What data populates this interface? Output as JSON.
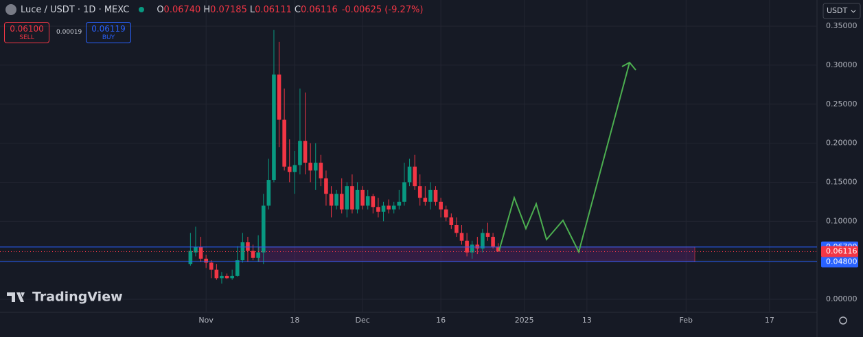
{
  "chart_data": {
    "type": "candlestick",
    "x": [
      -3,
      -2,
      -1,
      0,
      1,
      2,
      3,
      4,
      5,
      6,
      7,
      8,
      9,
      10,
      11,
      12,
      13,
      14,
      15,
      16,
      17,
      18,
      19,
      20,
      21,
      22,
      23,
      24,
      25,
      26,
      27,
      28,
      29,
      30,
      31,
      32,
      33,
      34,
      35,
      36,
      37,
      38,
      39,
      40,
      41,
      42,
      43,
      44,
      45,
      46,
      47,
      48,
      49,
      50,
      51,
      52,
      53,
      54,
      55,
      56
    ],
    "open": [
      0.045,
      0.06,
      0.067,
      0.052,
      0.047,
      0.038,
      0.027,
      0.03,
      0.027,
      0.03,
      0.05,
      0.073,
      0.062,
      0.053,
      0.06,
      0.12,
      0.153,
      0.288,
      0.23,
      0.17,
      0.163,
      0.172,
      0.203,
      0.175,
      0.165,
      0.175,
      0.155,
      0.135,
      0.12,
      0.135,
      0.115,
      0.145,
      0.115,
      0.14,
      0.12,
      0.132,
      0.118,
      0.112,
      0.12,
      0.115,
      0.12,
      0.125,
      0.15,
      0.17,
      0.145,
      0.13,
      0.125,
      0.14,
      0.125,
      0.115,
      0.105,
      0.095,
      0.085,
      0.075,
      0.06,
      0.07,
      0.065,
      0.085,
      0.08,
      0.0674
    ],
    "high": [
      0.085,
      0.093,
      0.08,
      0.057,
      0.05,
      0.045,
      0.035,
      0.033,
      0.038,
      0.068,
      0.085,
      0.08,
      0.07,
      0.082,
      0.135,
      0.18,
      0.345,
      0.33,
      0.27,
      0.205,
      0.19,
      0.27,
      0.265,
      0.2,
      0.2,
      0.185,
      0.165,
      0.145,
      0.14,
      0.155,
      0.15,
      0.16,
      0.15,
      0.145,
      0.14,
      0.135,
      0.13,
      0.125,
      0.128,
      0.125,
      0.14,
      0.175,
      0.18,
      0.185,
      0.16,
      0.145,
      0.15,
      0.145,
      0.13,
      0.12,
      0.11,
      0.105,
      0.095,
      0.085,
      0.075,
      0.08,
      0.09,
      0.098,
      0.085,
      0.07185
    ],
    "low": [
      0.043,
      0.055,
      0.048,
      0.04,
      0.027,
      0.025,
      0.02,
      0.026,
      0.025,
      0.029,
      0.047,
      0.048,
      0.05,
      0.048,
      0.045,
      0.115,
      0.15,
      0.195,
      0.165,
      0.15,
      0.135,
      0.16,
      0.16,
      0.15,
      0.14,
      0.145,
      0.12,
      0.105,
      0.115,
      0.11,
      0.105,
      0.11,
      0.11,
      0.115,
      0.115,
      0.11,
      0.105,
      0.1,
      0.11,
      0.11,
      0.115,
      0.12,
      0.145,
      0.14,
      0.12,
      0.12,
      0.115,
      0.12,
      0.105,
      0.1,
      0.09,
      0.08,
      0.07,
      0.055,
      0.052,
      0.058,
      0.06,
      0.075,
      0.065,
      0.06111
    ],
    "close": [
      0.062,
      0.067,
      0.052,
      0.047,
      0.038,
      0.027,
      0.03,
      0.027,
      0.03,
      0.05,
      0.073,
      0.062,
      0.053,
      0.06,
      0.12,
      0.153,
      0.288,
      0.23,
      0.17,
      0.163,
      0.172,
      0.203,
      0.175,
      0.165,
      0.175,
      0.155,
      0.135,
      0.12,
      0.135,
      0.115,
      0.145,
      0.115,
      0.14,
      0.12,
      0.132,
      0.118,
      0.112,
      0.12,
      0.115,
      0.12,
      0.125,
      0.15,
      0.17,
      0.145,
      0.13,
      0.125,
      0.14,
      0.125,
      0.115,
      0.105,
      0.095,
      0.085,
      0.075,
      0.06,
      0.07,
      0.065,
      0.085,
      0.08,
      0.0674,
      0.06116
    ],
    "up_color": "#089981",
    "down_color": "#f23645",
    "xlim": [
      -39.5,
      117.1
    ],
    "xticks": [
      {
        "value": 0,
        "label": "Nov"
      },
      {
        "value": 17,
        "label": "18"
      },
      {
        "value": 30,
        "label": "Dec"
      },
      {
        "value": 45,
        "label": "16"
      },
      {
        "value": 61,
        "label": "2025"
      },
      {
        "value": 73,
        "label": "13"
      },
      {
        "value": 92,
        "label": "Feb"
      },
      {
        "value": 108,
        "label": "17"
      }
    ],
    "ylim": [
      -0.0167,
      0.3835
    ],
    "yticks": [
      {
        "value": 0,
        "label": "0.00000"
      },
      {
        "value": 0.05,
        "label": "0.05000"
      },
      {
        "value": 0.1,
        "label": "0.10000"
      },
      {
        "value": 0.15,
        "label": "0.15000"
      },
      {
        "value": 0.2,
        "label": "0.20000"
      },
      {
        "value": 0.25,
        "label": "0.25000"
      },
      {
        "value": 0.3,
        "label": "0.30000"
      },
      {
        "value": 0.35,
        "label": "0.35000"
      }
    ],
    "grid": true,
    "levels": [
      {
        "value": 0.067,
        "label": "0.06700",
        "color": "#2962ff"
      },
      {
        "value": 0.048,
        "label": "0.04800",
        "color": "#2962ff"
      }
    ],
    "last_price": {
      "value": 0.06116,
      "label": "0.06116",
      "color": "#f23645"
    }
  },
  "ui": {
    "symbol": "Luce / USDT · 1D · MEXC",
    "ohlc": [
      {
        "key": "O",
        "value": "0.06740"
      },
      {
        "key": "H",
        "value": "0.07185"
      },
      {
        "key": "L",
        "value": "0.06111"
      },
      {
        "key": "C",
        "value": "0.06116"
      }
    ],
    "change": "-0.00625 (-9.27%)",
    "sell": {
      "price": "0.06100",
      "label": "SELL"
    },
    "spread": "0.00019",
    "buy": {
      "price": "0.06119",
      "label": "BUY"
    },
    "currency": "USDT",
    "brand": "TradingView"
  }
}
